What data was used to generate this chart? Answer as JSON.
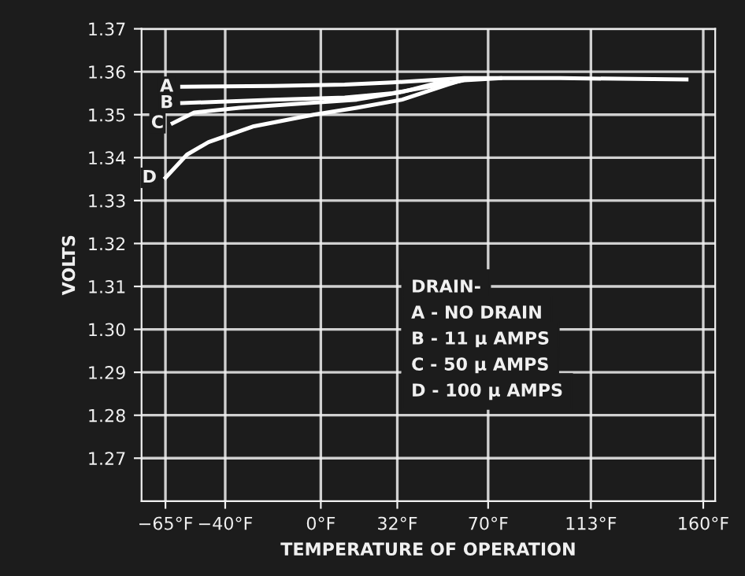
{
  "chart_data": {
    "type": "line",
    "xlabel": "TEMPERATURE OF OPERATION",
    "ylabel": "VOLTS",
    "xlim": [
      -75,
      165
    ],
    "ylim": [
      1.26,
      1.37
    ],
    "xticks": [
      {
        "value": -65,
        "label": "−65°F"
      },
      {
        "value": -40,
        "label": "−40°F"
      },
      {
        "value": 0,
        "label": "0°F"
      },
      {
        "value": 32,
        "label": "32°F"
      },
      {
        "value": 70,
        "label": "70°F"
      },
      {
        "value": 113,
        "label": "113°F"
      },
      {
        "value": 160,
        "label": "160°F"
      }
    ],
    "yticks": [
      {
        "value": 1.27,
        "label": "1.27"
      },
      {
        "value": 1.28,
        "label": "1.28"
      },
      {
        "value": 1.29,
        "label": "1.29"
      },
      {
        "value": 1.3,
        "label": "1.30"
      },
      {
        "value": 1.31,
        "label": "1.31"
      },
      {
        "value": 1.32,
        "label": "1.32"
      },
      {
        "value": 1.33,
        "label": "1.33"
      },
      {
        "value": 1.34,
        "label": "1.34"
      },
      {
        "value": 1.35,
        "label": "1.35"
      },
      {
        "value": 1.36,
        "label": "1.36"
      },
      {
        "value": 1.37,
        "label": "1.37"
      }
    ],
    "grid": true,
    "marker": "none",
    "line_style": "solid",
    "series": [
      {
        "name": "A",
        "color": "#ffffff",
        "x": [
          -58,
          -20,
          10,
          30,
          45,
          60,
          100,
          153
        ],
        "values": [
          1.3565,
          1.3567,
          1.357,
          1.3575,
          1.358,
          1.3585,
          1.3585,
          1.3582
        ]
      },
      {
        "name": "B",
        "color": "#ffffff",
        "x": [
          -58,
          -20,
          10,
          30,
          45,
          60,
          75
        ],
        "values": [
          1.3527,
          1.3535,
          1.354,
          1.355,
          1.3565,
          1.358,
          1.3585
        ]
      },
      {
        "name": "C",
        "color": "#ffffff",
        "x": [
          -62,
          -53,
          -34,
          15,
          34,
          53
        ],
        "values": [
          1.348,
          1.3505,
          1.3516,
          1.3535,
          1.3553,
          1.358
        ]
      },
      {
        "name": "D",
        "color": "#ffffff",
        "x": [
          -65,
          -56,
          -47,
          -28,
          -3,
          15,
          34,
          53,
          59
        ],
        "values": [
          1.3353,
          1.3407,
          1.3436,
          1.3473,
          1.35,
          1.3516,
          1.3535,
          1.357,
          1.358
        ]
      }
    ],
    "annotations": [
      "DRAIN-",
      "A - NO DRAIN",
      "B - 11 µ AMPS",
      "C - 50 µ AMPS",
      "D - 100 µ AMPS"
    ]
  }
}
